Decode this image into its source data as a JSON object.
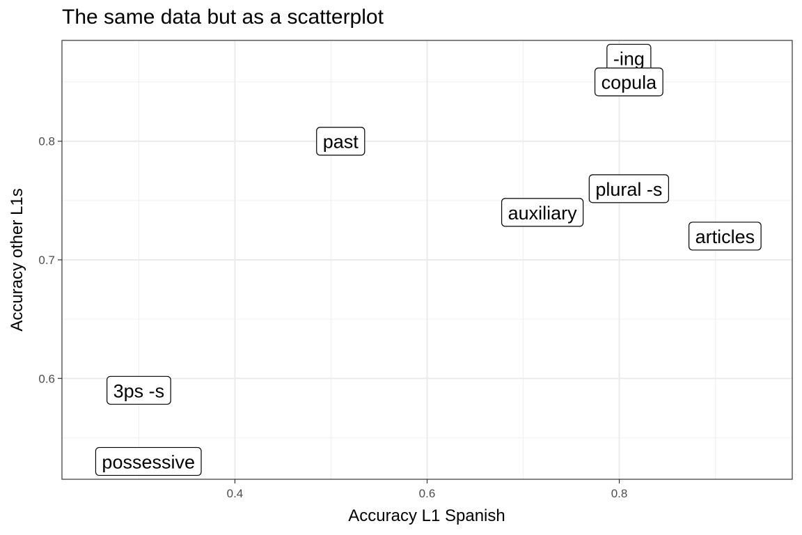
{
  "chart_data": {
    "type": "scatter",
    "title": "The same data but as a scatterplot",
    "xlabel": "Accuracy L1 Spanish",
    "ylabel": "Accuracy other L1s",
    "xlim": [
      0.22,
      0.98
    ],
    "ylim": [
      0.515,
      0.885
    ],
    "x_ticks": [
      0.4,
      0.6,
      0.8
    ],
    "x_tick_labels": [
      "0.4",
      "0.6",
      "0.8"
    ],
    "y_ticks": [
      0.6,
      0.7,
      0.8
    ],
    "y_tick_labels": [
      "0.6",
      "0.7",
      "0.8"
    ],
    "x_minor": [
      0.3,
      0.5,
      0.7,
      0.9
    ],
    "y_minor": [
      0.55,
      0.65,
      0.75,
      0.85
    ],
    "grid": true,
    "legend": "none",
    "points": [
      {
        "label": "-ing",
        "x": 0.81,
        "y": 0.87
      },
      {
        "label": "copula",
        "x": 0.81,
        "y": 0.85
      },
      {
        "label": "past",
        "x": 0.51,
        "y": 0.8
      },
      {
        "label": "plural -s",
        "x": 0.81,
        "y": 0.76
      },
      {
        "label": "auxiliary",
        "x": 0.72,
        "y": 0.74
      },
      {
        "label": "articles",
        "x": 0.91,
        "y": 0.72
      },
      {
        "label": "3ps -s",
        "x": 0.3,
        "y": 0.59
      },
      {
        "label": "possessive",
        "x": 0.31,
        "y": 0.53
      }
    ]
  }
}
